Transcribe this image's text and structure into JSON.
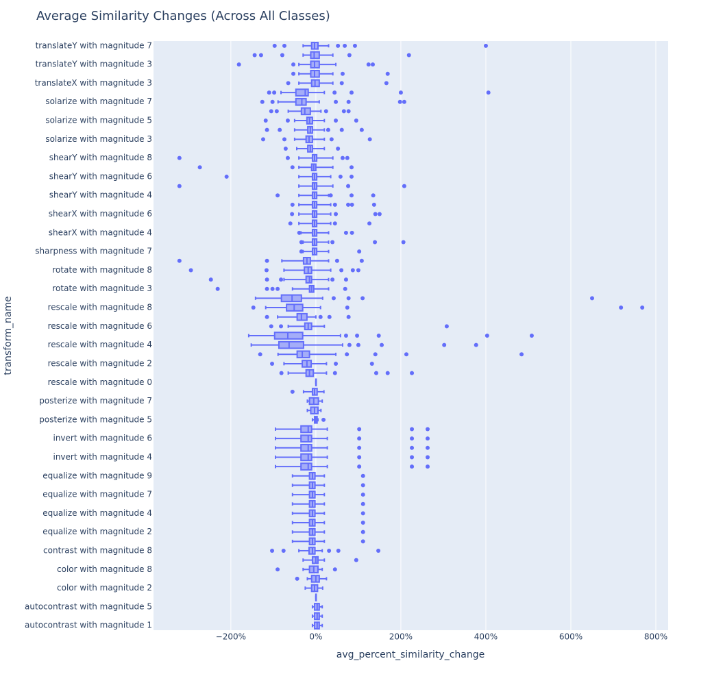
{
  "chart_data": {
    "type": "box",
    "orientation": "horizontal",
    "title": "Average Similarity Changes (Across All Classes)",
    "x_label": "avg_percent_similarity_change",
    "y_label": "transform_name",
    "color": "#636efa",
    "grid": true,
    "xlim": [
      -382,
      829
    ],
    "xticks": [
      {
        "value": -200,
        "label": "−200%"
      },
      {
        "value": 0,
        "label": "0%"
      },
      {
        "value": 200,
        "label": "200%"
      },
      {
        "value": 400,
        "label": "400%"
      },
      {
        "value": 600,
        "label": "600%"
      },
      {
        "value": 800,
        "label": "800%"
      }
    ],
    "categories": [
      "translateY with magnitude 7",
      null,
      "translateY with magnitude 3",
      null,
      "translateX with magnitude 3",
      null,
      "solarize with magnitude 7",
      null,
      "solarize with magnitude 5",
      null,
      "solarize with magnitude 3",
      null,
      "shearY with magnitude 8",
      null,
      "shearY with magnitude 6",
      null,
      "shearY with magnitude 4",
      null,
      "shearX with magnitude 6",
      null,
      "shearX with magnitude 4",
      null,
      "sharpness with magnitude 7",
      null,
      "rotate with magnitude 8",
      null,
      "rotate with magnitude 3",
      null,
      "rescale with magnitude 8",
      null,
      "rescale with magnitude 6",
      null,
      "rescale with magnitude 4",
      null,
      "rescale with magnitude 2",
      null,
      "rescale with magnitude 0",
      null,
      "posterize with magnitude 7",
      null,
      "posterize with magnitude 5",
      null,
      "invert with magnitude 6",
      null,
      "invert with magnitude 4",
      null,
      "equalize with magnitude 9",
      null,
      "equalize with magnitude 7",
      null,
      "equalize with magnitude 4",
      null,
      "equalize with magnitude 2",
      null,
      "contrast with magnitude 8",
      null,
      "color with magnitude 8",
      null,
      "color with magnitude 2",
      null,
      "autocontrast with magnitude 5",
      null,
      "autocontrast with magnitude 1"
    ],
    "boxes": [
      {
        "low": -30,
        "q1": -10,
        "median": -3,
        "q3": 5,
        "high": 30,
        "outliers": [
          -97,
          -74,
          52,
          68,
          92,
          400
        ]
      },
      {
        "low": -30,
        "q1": -12,
        "median": -4,
        "q3": 8,
        "high": 40,
        "outliers": [
          -144,
          -129,
          -79,
          79,
          219
        ]
      },
      {
        "low": -40,
        "q1": -12,
        "median": -3,
        "q3": 8,
        "high": 47,
        "outliers": [
          -181,
          -53,
          124,
          134
        ]
      },
      {
        "low": -40,
        "q1": -12,
        "median": -3,
        "q3": 8,
        "high": 40,
        "outliers": [
          -53,
          63,
          169
        ]
      },
      {
        "low": -40,
        "q1": -10,
        "median": -2,
        "q3": 8,
        "high": 40,
        "outliers": [
          -65,
          61,
          166
        ]
      },
      {
        "low": -82,
        "q1": -47,
        "median": -25,
        "q3": -18,
        "high": 20,
        "outliers": [
          -110,
          -98,
          44,
          84,
          200,
          406
        ]
      },
      {
        "low": -89,
        "q1": -47,
        "median": -33,
        "q3": -23,
        "high": 8,
        "outliers": [
          -126,
          -102,
          47,
          77,
          198,
          208
        ]
      },
      {
        "low": -65,
        "q1": -34,
        "median": -26,
        "q3": -13,
        "high": 12,
        "outliers": [
          -105,
          -92,
          24,
          66,
          77
        ]
      },
      {
        "low": -50,
        "q1": -21,
        "median": -15,
        "q3": -8,
        "high": 20,
        "outliers": [
          -118,
          -66,
          47,
          95
        ]
      },
      {
        "low": -50,
        "q1": -19,
        "median": -13,
        "q3": -8,
        "high": 20,
        "outliers": [
          -115,
          -85,
          29,
          61,
          108
        ]
      },
      {
        "low": -50,
        "q1": -23,
        "median": -16,
        "q3": -8,
        "high": 20,
        "outliers": [
          -124,
          -74,
          37,
          127
        ]
      },
      {
        "low": -45,
        "q1": -19,
        "median": -13,
        "q3": -8,
        "high": 20,
        "outliers": [
          -71,
          52
        ]
      },
      {
        "low": -40,
        "q1": -8,
        "median": -3,
        "q3": 2,
        "high": 40,
        "outliers": [
          -321,
          -66,
          63,
          74
        ]
      },
      {
        "low": -40,
        "q1": -10,
        "median": -5,
        "q3": 0,
        "high": 40,
        "outliers": [
          -273,
          -55,
          84
        ]
      },
      {
        "low": -40,
        "q1": -8,
        "median": -3,
        "q3": 2,
        "high": 35,
        "outliers": [
          -210,
          58,
          84
        ]
      },
      {
        "low": -40,
        "q1": -8,
        "median": -3,
        "q3": 2,
        "high": 40,
        "outliers": [
          -321,
          76,
          208
        ]
      },
      {
        "low": -40,
        "q1": -8,
        "median": -3,
        "q3": 2,
        "high": 30,
        "outliers": [
          -90,
          35,
          84,
          135
        ]
      },
      {
        "low": -40,
        "q1": -8,
        "median": -3,
        "q3": 2,
        "high": 35,
        "outliers": [
          -55,
          45,
          76,
          85,
          137
        ]
      },
      {
        "low": -40,
        "q1": -8,
        "median": -3,
        "q3": 2,
        "high": 35,
        "outliers": [
          -56,
          47,
          140,
          150
        ]
      },
      {
        "low": -40,
        "q1": -8,
        "median": -3,
        "q3": 2,
        "high": 35,
        "outliers": [
          -60,
          45,
          126
        ]
      },
      {
        "low": -35,
        "q1": -8,
        "median": -3,
        "q3": 2,
        "high": 30,
        "outliers": [
          -39,
          71,
          85
        ]
      },
      {
        "low": -30,
        "q1": -8,
        "median": -3,
        "q3": 2,
        "high": 30,
        "outliers": [
          -34,
          39,
          139,
          206
        ]
      },
      {
        "low": -30,
        "q1": -8,
        "median": -3,
        "q3": 2,
        "high": 30,
        "outliers": [
          -34,
          102
        ]
      },
      {
        "low": -80,
        "q1": -29,
        "median": -21,
        "q3": -13,
        "high": 30,
        "outliers": [
          -321,
          -115,
          50,
          108
        ]
      },
      {
        "low": -75,
        "q1": -27,
        "median": -18,
        "q3": -10,
        "high": 35,
        "outliers": [
          -294,
          -116,
          60,
          87,
          100
        ]
      },
      {
        "low": -75,
        "q1": -23,
        "median": -15,
        "q3": -10,
        "high": 30,
        "outliers": [
          -247,
          -115,
          -82,
          39,
          71
        ]
      },
      {
        "low": -55,
        "q1": -15,
        "median": -10,
        "q3": -5,
        "high": 30,
        "outliers": [
          -231,
          -115,
          -102,
          -90,
          69
        ]
      },
      {
        "low": -142,
        "q1": -81,
        "median": -56,
        "q3": -34,
        "high": 16,
        "outliers": [
          42,
          77,
          110,
          650
        ]
      },
      {
        "low": -118,
        "q1": -69,
        "median": -51,
        "q3": -31,
        "high": 11,
        "outliers": [
          -147,
          74,
          718,
          768
        ]
      },
      {
        "low": -90,
        "q1": -44,
        "median": -34,
        "q3": -21,
        "high": 0,
        "outliers": [
          -115,
          11,
          32,
          77
        ]
      },
      {
        "low": -65,
        "q1": -26,
        "median": -18,
        "q3": -10,
        "high": 20,
        "outliers": [
          -105,
          -82,
          308
        ]
      },
      {
        "low": -158,
        "q1": -97,
        "median": -66,
        "q3": -31,
        "high": 58,
        "outliers": [
          71,
          97,
          148,
          403,
          508
        ]
      },
      {
        "low": -152,
        "q1": -87,
        "median": -63,
        "q3": -29,
        "high": 63,
        "outliers": [
          79,
          100,
          155,
          302,
          377
        ]
      },
      {
        "low": -89,
        "q1": -44,
        "median": -32,
        "q3": -15,
        "high": 47,
        "outliers": [
          -131,
          73,
          140,
          213,
          484
        ]
      },
      {
        "low": -75,
        "q1": -32,
        "median": -21,
        "q3": -11,
        "high": 25,
        "outliers": [
          -103,
          47,
          132
        ]
      },
      {
        "low": -65,
        "q1": -23,
        "median": -15,
        "q3": -6,
        "high": 25,
        "outliers": [
          -81,
          45,
          142,
          169,
          226
        ]
      },
      {
        "low": 0,
        "q1": 0,
        "median": 0,
        "q3": 0,
        "high": 0
      },
      {
        "low": -29,
        "q1": -8,
        "median": -3,
        "q3": 3,
        "high": 19,
        "outliers": [
          -55
        ]
      },
      {
        "low": -20,
        "q1": -15,
        "median": -5,
        "q3": 6,
        "high": 15
      },
      {
        "low": -20,
        "q1": -12,
        "median": -3,
        "q3": 5,
        "high": 12
      },
      {
        "low": -8,
        "q1": -3,
        "median": 0,
        "q3": 3,
        "high": 5,
        "outliers": [
          18
        ]
      },
      {
        "low": -95,
        "q1": -35,
        "median": -18,
        "q3": -10,
        "high": 27,
        "outliers": [
          102,
          226,
          263
        ]
      },
      {
        "low": -95,
        "q1": -35,
        "median": -18,
        "q3": -10,
        "high": 27,
        "outliers": [
          102,
          226,
          263
        ]
      },
      {
        "low": -95,
        "q1": -35,
        "median": -18,
        "q3": -10,
        "high": 27,
        "outliers": [
          102,
          226,
          263
        ]
      },
      {
        "low": -95,
        "q1": -35,
        "median": -18,
        "q3": -10,
        "high": 27,
        "outliers": [
          102,
          226,
          263
        ]
      },
      {
        "low": -95,
        "q1": -35,
        "median": -18,
        "q3": -10,
        "high": 27,
        "outliers": [
          102,
          226,
          263
        ]
      },
      {
        "low": -55,
        "q1": -15,
        "median": -8,
        "q3": -2,
        "high": 20,
        "outliers": [
          111
        ]
      },
      {
        "low": -55,
        "q1": -15,
        "median": -8,
        "q3": -2,
        "high": 20,
        "outliers": [
          111
        ]
      },
      {
        "low": -55,
        "q1": -15,
        "median": -8,
        "q3": -2,
        "high": 20,
        "outliers": [
          111
        ]
      },
      {
        "low": -55,
        "q1": -15,
        "median": -8,
        "q3": -2,
        "high": 20,
        "outliers": [
          111
        ]
      },
      {
        "low": -55,
        "q1": -15,
        "median": -8,
        "q3": -2,
        "high": 20,
        "outliers": [
          111
        ]
      },
      {
        "low": -55,
        "q1": -15,
        "median": -8,
        "q3": -2,
        "high": 20,
        "outliers": [
          111
        ]
      },
      {
        "low": -55,
        "q1": -15,
        "median": -8,
        "q3": -2,
        "high": 20,
        "outliers": [
          111
        ]
      },
      {
        "low": -55,
        "q1": -15,
        "median": -8,
        "q3": -2,
        "high": 20,
        "outliers": [
          111
        ]
      },
      {
        "low": -40,
        "q1": -16,
        "median": -8,
        "q3": -2,
        "high": 15,
        "outliers": [
          -103,
          -76,
          31,
          53,
          147
        ]
      },
      {
        "low": -30,
        "q1": -8,
        "median": 0,
        "q3": 5,
        "high": 20,
        "outliers": [
          95
        ]
      },
      {
        "low": -30,
        "q1": -15,
        "median": -5,
        "q3": 5,
        "high": 15,
        "outliers": [
          -90,
          45
        ]
      },
      {
        "low": -20,
        "q1": -10,
        "median": 0,
        "q3": 8,
        "high": 25,
        "outliers": [
          -44
        ]
      },
      {
        "low": -25,
        "q1": -10,
        "median": -3,
        "q3": 4,
        "high": 16
      },
      {
        "low": 0,
        "q1": 0,
        "median": 0,
        "q3": 0,
        "high": 0
      },
      {
        "low": -8,
        "q1": -3,
        "median": 3,
        "q3": 8,
        "high": 15
      },
      {
        "low": -8,
        "q1": -3,
        "median": 3,
        "q3": 8,
        "high": 15
      },
      {
        "low": -8,
        "q1": -3,
        "median": 3,
        "q3": 8,
        "high": 15
      }
    ]
  }
}
